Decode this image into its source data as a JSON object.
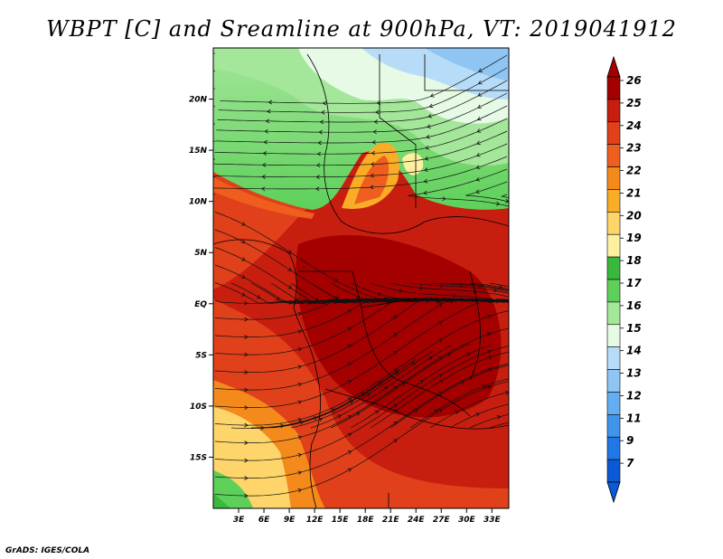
{
  "title": "WBPT [C] and Sreamline at 900hPa, VT: 2019041912",
  "footer": "GrADS: IGES/COLA",
  "map": {
    "lat_ticks": [
      "20N",
      "15N",
      "10N",
      "5N",
      "EQ",
      "5S",
      "10S",
      "15S"
    ],
    "lon_ticks": [
      "3E",
      "6E",
      "9E",
      "12E",
      "15E",
      "18E",
      "21E",
      "24E",
      "27E",
      "30E",
      "33E"
    ],
    "lat_values": [
      20,
      15,
      10,
      5,
      0,
      -5,
      -10,
      -15
    ],
    "lon_values": [
      3,
      6,
      9,
      12,
      15,
      18,
      21,
      24,
      27,
      30,
      33
    ]
  },
  "colorbar": {
    "labels": [
      "26",
      "25",
      "24",
      "23",
      "22",
      "21",
      "20",
      "19",
      "18",
      "17",
      "16",
      "15",
      "14",
      "13",
      "12",
      "11",
      "9",
      "7"
    ],
    "colors": [
      "#a50000",
      "#c81e0f",
      "#e0401a",
      "#ef5e1e",
      "#f58a1c",
      "#f9ad26",
      "#fdd56a",
      "#fdf1a0",
      "#38b83c",
      "#5ed05a",
      "#a4e69a",
      "#e6fae6",
      "#b6dcf8",
      "#8ec5f3",
      "#64adf0",
      "#4094ec",
      "#1f78e6",
      "#0a5ad6"
    ]
  }
}
